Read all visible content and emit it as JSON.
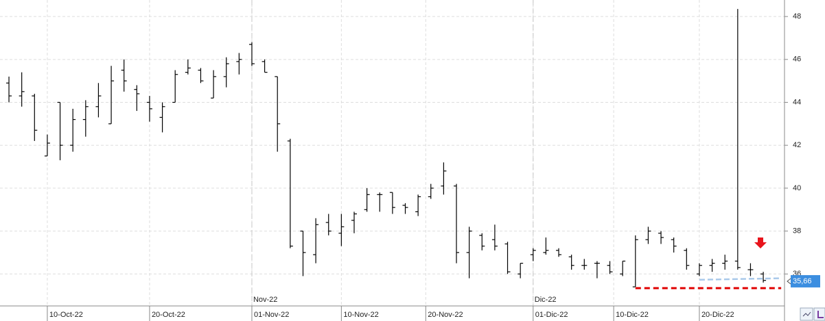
{
  "chart_data": {
    "type": "ohlc",
    "color": "#000000",
    "x": [
      0,
      1,
      2,
      3,
      4,
      5,
      6,
      7,
      8,
      9,
      10,
      11,
      12,
      13,
      14,
      15,
      16,
      17,
      18,
      19,
      20,
      21,
      22,
      23,
      24,
      25,
      26,
      27,
      28,
      29,
      30,
      31,
      32,
      33,
      34,
      35,
      36,
      37,
      38,
      39,
      40,
      41,
      42,
      43,
      44,
      45,
      46,
      47,
      48,
      49,
      50,
      51,
      52,
      53,
      54,
      55,
      56,
      57,
      58,
      59
    ],
    "open": [
      44.9,
      44.3,
      44.3,
      41.5,
      44.0,
      42.0,
      43.2,
      43.8,
      43.0,
      45.5,
      44.6,
      44.0,
      43.3,
      44.0,
      45.4,
      45.5,
      44.2,
      45.2,
      45.9,
      46.7,
      45.9,
      45.2,
      42.2,
      38.0,
      36.9,
      38.4,
      37.9,
      38.5,
      39.0,
      39.7,
      39.8,
      39.2,
      38.9,
      39.6,
      40.1,
      40.1,
      37.0,
      37.8,
      37.6,
      37.4,
      36.0,
      36.9,
      37.0,
      37.1,
      36.8,
      36.4,
      36.5,
      36.4,
      36.0,
      35.4,
      37.6,
      37.9,
      37.6,
      37.1,
      36.0,
      36.4,
      36.5,
      36.6,
      36.2,
      36.0
    ],
    "high": [
      45.2,
      45.4,
      44.4,
      42.5,
      44.0,
      43.7,
      44.1,
      44.9,
      45.7,
      46.0,
      44.8,
      44.3,
      44.0,
      45.5,
      46.0,
      45.6,
      45.5,
      46.1,
      46.3,
      46.8,
      46.0,
      45.2,
      42.3,
      38.0,
      38.6,
      38.8,
      38.8,
      38.9,
      40.0,
      39.8,
      39.8,
      39.3,
      39.7,
      40.2,
      41.2,
      40.2,
      38.2,
      37.9,
      38.3,
      37.5,
      36.5,
      37.2,
      37.7,
      37.2,
      36.9,
      36.7,
      36.6,
      36.6,
      36.6,
      37.8,
      38.2,
      38.0,
      37.7,
      37.2,
      36.5,
      36.7,
      36.9,
      48.35,
      36.5,
      36.1
    ],
    "low": [
      44.0,
      43.8,
      42.2,
      41.5,
      41.3,
      41.7,
      42.4,
      43.3,
      43.0,
      44.5,
      43.6,
      43.1,
      42.6,
      44.0,
      45.3,
      44.9,
      44.2,
      44.7,
      45.3,
      45.7,
      45.4,
      41.7,
      37.2,
      35.9,
      36.5,
      37.8,
      37.3,
      37.9,
      38.9,
      38.9,
      38.8,
      38.8,
      38.7,
      39.5,
      39.7,
      36.5,
      35.8,
      37.1,
      37.1,
      36.0,
      35.8,
      36.6,
      36.9,
      36.8,
      36.2,
      36.2,
      35.8,
      36.0,
      35.9,
      35.4,
      37.4,
      37.4,
      37.0,
      36.2,
      35.9,
      36.1,
      36.2,
      36.2,
      35.9,
      35.6
    ],
    "close": [
      44.3,
      44.5,
      42.7,
      42.1,
      42.0,
      43.2,
      43.8,
      44.3,
      45.0,
      45.0,
      44.4,
      43.7,
      43.8,
      45.3,
      45.6,
      45.0,
      45.2,
      45.8,
      46.0,
      45.8,
      45.4,
      43.0,
      37.3,
      37.0,
      38.3,
      38.0,
      38.2,
      38.8,
      39.7,
      39.7,
      39.1,
      39.1,
      39.6,
      40.0,
      40.8,
      37.0,
      38.0,
      37.3,
      37.3,
      36.1,
      36.5,
      37.1,
      37.1,
      36.9,
      36.4,
      36.4,
      36.5,
      36.1,
      36.6,
      37.6,
      38.0,
      37.7,
      37.3,
      36.4,
      36.4,
      36.5,
      36.6,
      36.3,
      36.2,
      35.7
    ],
    "xlim": [
      -0.7,
      60.66
    ],
    "xticks": [
      {
        "value": 3,
        "label": "10-Oct-22"
      },
      {
        "value": 11,
        "label": "20-Oct-22"
      },
      {
        "value": 19,
        "label": "01-Nov-22"
      },
      {
        "value": 26,
        "label": "10-Nov-22"
      },
      {
        "value": 32.6,
        "label": "20-Nov-22"
      },
      {
        "value": 41,
        "label": "01-Dic-22"
      },
      {
        "value": 47.3,
        "label": "10-Dic-22"
      },
      {
        "value": 54,
        "label": "20-Dic-22"
      }
    ],
    "month_ticks": [
      {
        "value": 19,
        "label": "Nov-22"
      },
      {
        "value": 41,
        "label": "Dic-22"
      }
    ],
    "ylim": [
      34.51,
      48.77
    ],
    "yticks": [
      36,
      38,
      40,
      42,
      44,
      46,
      48
    ],
    "grid": true,
    "hlines": [
      {
        "value": 35.34,
        "from": 49,
        "to": 60.4,
        "color": "#e00000"
      }
    ],
    "trendlines": [
      {
        "x": [
          54,
          60.4
        ],
        "y": [
          35.73,
          35.8
        ],
        "color": "#a9c9ea"
      }
    ],
    "last_price": {
      "value": 35.66,
      "label": "35,66",
      "color": "#3c8ee0"
    }
  }
}
